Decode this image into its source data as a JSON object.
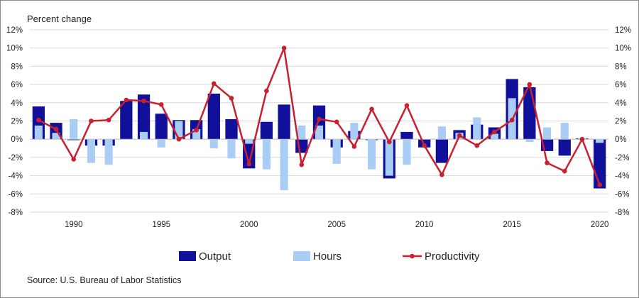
{
  "chart_data": {
    "type": "bar",
    "ylabel": "Percent change",
    "source": "Source: U.S. Bureau of Labor Statistics",
    "ylim": [
      -8,
      12
    ],
    "yticks": [
      -8,
      -6,
      -4,
      -2,
      0,
      2,
      4,
      6,
      8,
      10,
      12
    ],
    "ytick_labels": [
      "-8%",
      "-6%",
      "-4%",
      "-2%",
      "0%",
      "2%",
      "4%",
      "6%",
      "8%",
      "10%",
      "12%"
    ],
    "x": [
      1988,
      1989,
      1990,
      1991,
      1992,
      1993,
      1994,
      1995,
      1996,
      1997,
      1998,
      1999,
      2000,
      2001,
      2002,
      2003,
      2004,
      2005,
      2006,
      2007,
      2008,
      2009,
      2010,
      2011,
      2012,
      2013,
      2014,
      2015,
      2016,
      2017,
      2018,
      2019,
      2020
    ],
    "xtick_years": [
      1990,
      1995,
      2000,
      2005,
      2010,
      2015,
      2020
    ],
    "xtick_labels": [
      "1990",
      "1995",
      "2000",
      "2005",
      "2010",
      "2015",
      "2020"
    ],
    "series": [
      {
        "name": "Output",
        "kind": "bar",
        "color": "#10109a",
        "values": [
          3.6,
          1.8,
          -0.1,
          -0.7,
          -0.7,
          4.2,
          4.9,
          2.8,
          2.1,
          2.1,
          5.0,
          2.2,
          -3.2,
          1.9,
          3.8,
          -1.5,
          3.7,
          -0.9,
          0.9,
          -0.1,
          -4.3,
          0.8,
          -0.9,
          -2.6,
          1.0,
          1.6,
          1.3,
          6.6,
          5.7,
          -1.3,
          -1.8,
          0.1,
          -5.4
        ]
      },
      {
        "name": "Hours",
        "kind": "bar",
        "color": "#a9cdf4",
        "values": [
          1.5,
          0.7,
          2.2,
          -2.6,
          -2.8,
          0.0,
          0.8,
          -0.9,
          2.0,
          1.1,
          -1.0,
          -2.1,
          -0.5,
          -3.3,
          -5.6,
          1.5,
          1.5,
          -2.7,
          1.8,
          -3.3,
          -4.0,
          -2.8,
          0.0,
          1.4,
          0.7,
          2.4,
          0.6,
          4.5,
          -0.3,
          1.3,
          1.8,
          0.1,
          -0.4
        ]
      },
      {
        "name": "Productivity",
        "kind": "line",
        "color": "#c9202f",
        "values": [
          2.1,
          1.1,
          -2.2,
          2.0,
          2.1,
          4.3,
          4.2,
          3.8,
          0.0,
          1.0,
          6.1,
          4.5,
          -2.7,
          5.3,
          10.0,
          -2.8,
          2.2,
          1.9,
          -0.8,
          3.3,
          -0.3,
          3.7,
          -0.7,
          -3.9,
          0.4,
          -0.7,
          0.8,
          2.1,
          6.0,
          -2.6,
          -3.5,
          0.0,
          -5.0
        ]
      }
    ],
    "legend_position": "bottom",
    "grid": true
  }
}
